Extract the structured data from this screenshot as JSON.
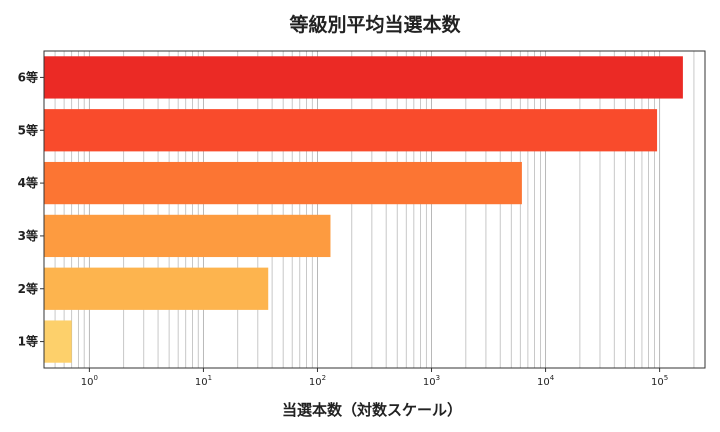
{
  "chart_data": {
    "type": "bar",
    "orientation": "horizontal",
    "title": "等級別平均当選本数",
    "xlabel": "当選本数（対数スケール）",
    "ylabel": "",
    "x_scale": "log",
    "xlim": [
      0.4,
      250000
    ],
    "grid": "x, major and minor",
    "categories": [
      "1等",
      "2等",
      "3等",
      "4等",
      "5等",
      "6等"
    ],
    "values": [
      0.7,
      37,
      130,
      6200,
      95000,
      160000
    ],
    "bar_colors": [
      "#fdd06b",
      "#fdb44e",
      "#fd9b40",
      "#fc7533",
      "#f94b2c",
      "#eb2a25"
    ],
    "xticks": [
      {
        "base": "10",
        "exp": "0",
        "value": 1
      },
      {
        "base": "10",
        "exp": "1",
        "value": 10
      },
      {
        "base": "10",
        "exp": "2",
        "value": 100
      },
      {
        "base": "10",
        "exp": "3",
        "value": 1000
      },
      {
        "base": "10",
        "exp": "4",
        "value": 10000
      },
      {
        "base": "10",
        "exp": "5",
        "value": 100000
      }
    ]
  }
}
